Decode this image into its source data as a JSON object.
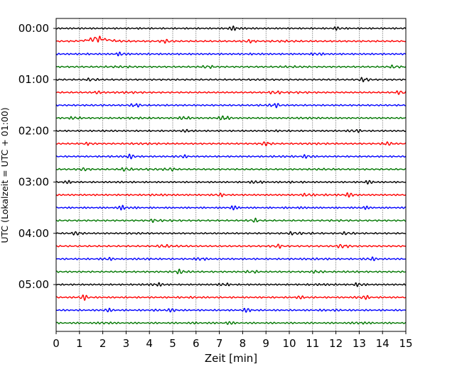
{
  "chart_data": {
    "type": "line",
    "title": "",
    "xlabel": "Zeit  [min]",
    "ylabel": "UTC (Lokalzeit = UTC + 01:00)",
    "xlim": [
      0,
      15
    ],
    "x_ticks": [
      "0",
      "1",
      "2",
      "3",
      "4",
      "5",
      "6",
      "7",
      "8",
      "9",
      "10",
      "11",
      "12",
      "13",
      "14",
      "15"
    ],
    "y_tick_labels": [
      "00:00",
      "01:00",
      "02:00",
      "03:00",
      "04:00",
      "05:00"
    ],
    "grid": "vertical dotted",
    "row_colors": [
      "#000000",
      "#ff0000",
      "#0000ff",
      "#007700"
    ],
    "rows": [
      {
        "start": "00:00",
        "bursts": [
          [
            7.6,
            0.7
          ],
          [
            12.1,
            0.5
          ]
        ],
        "drift": 0
      },
      {
        "start": "00:15",
        "bursts": [
          [
            1.7,
            1.3
          ],
          [
            4.7,
            0.6
          ],
          [
            8.3,
            0.5
          ]
        ],
        "drift": 1
      },
      {
        "start": "00:30",
        "bursts": [
          [
            2.8,
            0.6
          ],
          [
            11.2,
            0.5
          ]
        ],
        "drift": 0
      },
      {
        "start": "00:45",
        "bursts": [
          [
            6.5,
            0.5
          ],
          [
            14.5,
            0.5
          ]
        ],
        "drift": 0
      },
      {
        "start": "01:00",
        "bursts": [
          [
            13.2,
            0.7
          ],
          [
            1.5,
            0.4
          ]
        ],
        "drift": 0
      },
      {
        "start": "01:15",
        "bursts": [
          [
            9.4,
            0.6
          ],
          [
            14.8,
            0.7
          ],
          [
            1.8,
            0.4
          ]
        ],
        "drift": 0
      },
      {
        "start": "01:30",
        "bursts": [
          [
            3.4,
            0.6
          ],
          [
            9.4,
            0.6
          ]
        ],
        "drift": 0
      },
      {
        "start": "01:45",
        "bursts": [
          [
            7.2,
            0.9
          ],
          [
            5.5,
            0.6
          ],
          [
            0.8,
            0.5
          ]
        ],
        "drift": 0
      },
      {
        "start": "02:00",
        "bursts": [
          [
            12.8,
            0.6
          ],
          [
            5.6,
            0.4
          ]
        ],
        "drift": 0
      },
      {
        "start": "02:15",
        "bursts": [
          [
            9.0,
            0.7
          ],
          [
            14.2,
            0.6
          ],
          [
            1.4,
            0.4
          ]
        ],
        "drift": 0
      },
      {
        "start": "02:30",
        "bursts": [
          [
            3.2,
            0.7
          ],
          [
            10.8,
            0.6
          ],
          [
            5.4,
            0.5
          ]
        ],
        "drift": 0
      },
      {
        "start": "02:45",
        "bursts": [
          [
            3.0,
            0.7
          ],
          [
            1.2,
            0.5
          ],
          [
            4.9,
            0.5
          ]
        ],
        "drift": 0
      },
      {
        "start": "03:00",
        "bursts": [
          [
            8.6,
            0.6
          ],
          [
            13.4,
            0.5
          ],
          [
            0.5,
            0.4
          ]
        ],
        "drift": 0
      },
      {
        "start": "03:15",
        "bursts": [
          [
            10.8,
            0.6
          ],
          [
            12.6,
            0.7
          ],
          [
            7.0,
            0.5
          ]
        ],
        "drift": 0
      },
      {
        "start": "03:30",
        "bursts": [
          [
            2.9,
            0.7
          ],
          [
            7.6,
            0.6
          ],
          [
            13.2,
            0.5
          ]
        ],
        "drift": 0
      },
      {
        "start": "03:45",
        "bursts": [
          [
            8.5,
            0.6
          ],
          [
            4.2,
            0.4
          ]
        ],
        "drift": 0
      },
      {
        "start": "04:00",
        "bursts": [
          [
            0.9,
            0.6
          ],
          [
            10.2,
            0.5
          ],
          [
            12.5,
            0.5
          ]
        ],
        "drift": 0
      },
      {
        "start": "04:15",
        "bursts": [
          [
            9.5,
            0.6
          ],
          [
            12.3,
            0.6
          ],
          [
            4.6,
            0.5
          ]
        ],
        "drift": 0
      },
      {
        "start": "04:30",
        "bursts": [
          [
            13.5,
            0.6
          ],
          [
            6.2,
            0.6
          ],
          [
            2.2,
            0.5
          ]
        ],
        "drift": 0
      },
      {
        "start": "04:45",
        "bursts": [
          [
            5.3,
            0.6
          ],
          [
            11.2,
            0.5
          ],
          [
            8.4,
            0.5
          ]
        ],
        "drift": 0
      },
      {
        "start": "05:00",
        "bursts": [
          [
            7.2,
            0.5
          ],
          [
            13.0,
            0.6
          ],
          [
            4.4,
            0.4
          ]
        ],
        "drift": 0
      },
      {
        "start": "05:15",
        "bursts": [
          [
            1.2,
            0.8
          ],
          [
            13.2,
            0.6
          ],
          [
            10.5,
            0.4
          ]
        ],
        "drift": 0
      },
      {
        "start": "05:30",
        "bursts": [
          [
            8.2,
            0.6
          ],
          [
            2.2,
            0.5
          ],
          [
            5.0,
            0.4
          ]
        ],
        "drift": 0
      },
      {
        "start": "05:45",
        "bursts": [
          [
            2.1,
            0.5
          ],
          [
            13.0,
            0.5
          ],
          [
            7.4,
            0.4
          ]
        ],
        "drift": 0
      }
    ]
  }
}
